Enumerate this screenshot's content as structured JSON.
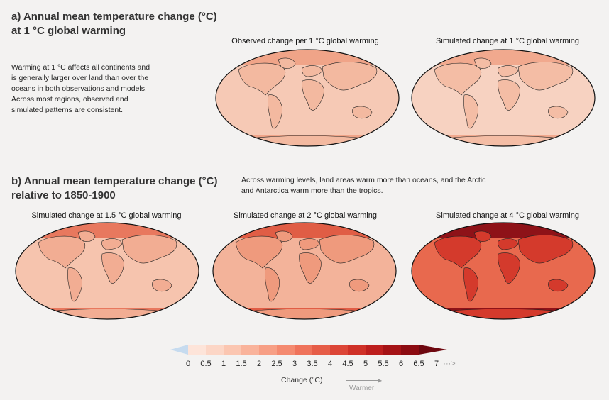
{
  "panel_a": {
    "title_line1": "a) Annual mean temperature change (°C)",
    "title_line2": "at 1 °C global warming",
    "description": [
      "Warming at 1 °C affects all continents and",
      "is generally larger over land than over the",
      "oceans in both observations and models.",
      "Across most regions, observed and",
      "simulated patterns are consistent."
    ],
    "maps": [
      {
        "title": "Observed change per 1 °C global warming",
        "fill": "#f6c9b5",
        "land": "#f3b9a0",
        "pole": "#f0a488"
      },
      {
        "title": "Simulated change at 1 °C global warming",
        "fill": "#f7d2c1",
        "land": "#f4bda5",
        "pole": "#f1a98e"
      }
    ]
  },
  "panel_b": {
    "title_line1": "b) Annual mean temperature change (°C)",
    "title_line2": "relative to 1850-1900",
    "description": [
      "Across warming levels, land areas warm more than oceans, and the Arctic",
      "and Antarctica warm more than the tropics."
    ],
    "maps": [
      {
        "title": "Simulated change at 1.5 °C global warming",
        "fill": "#f6c4ae",
        "land": "#f2ad93",
        "pole": "#e8785e"
      },
      {
        "title": "Simulated change at 2 °C global warming",
        "fill": "#f3b39a",
        "land": "#ef9a7d",
        "pole": "#e05d45"
      },
      {
        "title": "Simulated change at 4 °C global warming",
        "fill": "#e8694e",
        "land": "#d43a2c",
        "pole": "#8e1218"
      }
    ]
  },
  "colorbar": {
    "labels": [
      "0",
      "0.5",
      "1",
      "1.5",
      "2",
      "2.5",
      "3",
      "3.5",
      "4",
      "4.5",
      "5",
      "5.5",
      "6",
      "6.5",
      "7"
    ],
    "arrow_text": "···>",
    "title": "Change (°C)",
    "direction_label": "Warmer",
    "colors": [
      "#c6dbef",
      "#fde4d9",
      "#fcd6c6",
      "#fbc6b1",
      "#f9b39b",
      "#f79f85",
      "#f48a70",
      "#ef735b",
      "#e65d48",
      "#dc4637",
      "#cf3128",
      "#bd1f1e",
      "#a51316",
      "#8c0c12",
      "#6e0810"
    ]
  }
}
